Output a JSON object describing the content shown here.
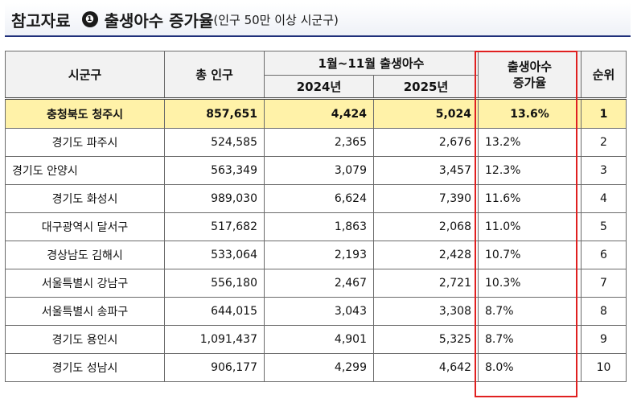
{
  "header": {
    "title": "참고자료",
    "number": "❶",
    "subtitle": "출생아수 증가율",
    "note": "(인구 50만 이상 시군구)"
  },
  "table": {
    "col_region": "시군구",
    "col_population": "총 인구",
    "col_births": "1월~11월 출생아수",
    "col_2024": "2024년",
    "col_2025": "2025년",
    "col_rate": "출생아수\n증가율",
    "col_rank": "순위",
    "rows": [
      {
        "region": "충청북도 청주시",
        "population": "857,651",
        "y2024": "4,424",
        "y2025": "5,024",
        "rate": "13.6%",
        "rank": "1"
      },
      {
        "region": "경기도 파주시",
        "population": "524,585",
        "y2024": "2,365",
        "y2025": "2,676",
        "rate": "13.2%",
        "rank": "2"
      },
      {
        "region": "경기도 안양시",
        "population": "563,349",
        "y2024": "3,079",
        "y2025": "3,457",
        "rate": "12.3%",
        "rank": "3"
      },
      {
        "region": "경기도 화성시",
        "population": "989,030",
        "y2024": "6,624",
        "y2025": "7,390",
        "rate": "11.6%",
        "rank": "4"
      },
      {
        "region": "대구광역시 달서구",
        "population": "517,682",
        "y2024": "1,863",
        "y2025": "2,068",
        "rate": "11.0%",
        "rank": "5"
      },
      {
        "region": "경상남도 김해시",
        "population": "533,064",
        "y2024": "2,193",
        "y2025": "2,428",
        "rate": "10.7%",
        "rank": "6"
      },
      {
        "region": "서울특별시 강남구",
        "population": "556,180",
        "y2024": "2,467",
        "y2025": "2,721",
        "rate": "10.3%",
        "rank": "7"
      },
      {
        "region": "서울특별시 송파구",
        "population": "644,015",
        "y2024": "3,043",
        "y2025": "3,308",
        "rate": "8.7%",
        "rank": "8"
      },
      {
        "region": "경기도 용인시",
        "population": "1,091,437",
        "y2024": "4,901",
        "y2025": "5,325",
        "rate": "8.7%",
        "rank": "9"
      },
      {
        "region": "경기도 성남시",
        "population": "906,177",
        "y2024": "4,299",
        "y2025": "4,642",
        "rate": "8.0%",
        "rank": "10"
      }
    ]
  },
  "colors": {
    "highlight_row": "#fff2a8",
    "rate_box": "#e02020",
    "title_rule": "#1f2f7a"
  }
}
